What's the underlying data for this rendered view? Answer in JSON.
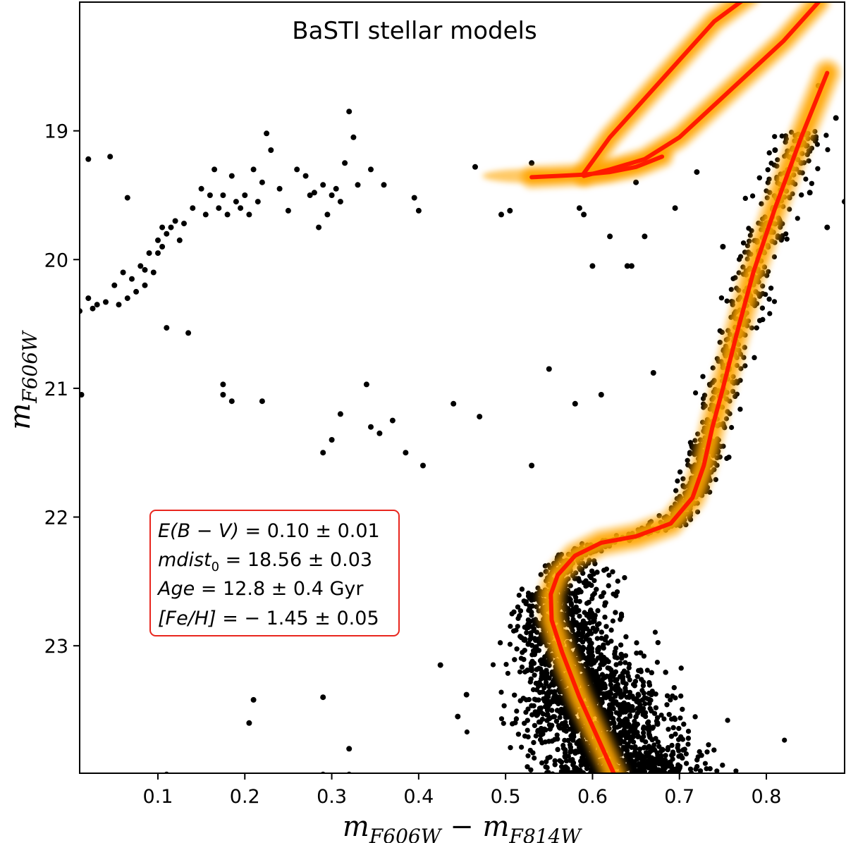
{
  "chart_data": {
    "type": "scatter",
    "title": "BaSTI stellar models",
    "xlabel": "m_F606W − m_F814W",
    "ylabel": "m_F606W",
    "xlabel_parts": {
      "base1": "m",
      "sub1": "F606W",
      "op": " − ",
      "base2": "m",
      "sub2": "F814W"
    },
    "ylabel_parts": {
      "base": "m",
      "sub": "F606W"
    },
    "xlim": [
      0.01,
      0.89
    ],
    "ylim": [
      23.99,
      18.0
    ],
    "y_inverted": true,
    "x_ticks": [
      0.1,
      0.2,
      0.3,
      0.4,
      0.5,
      0.6,
      0.7,
      0.8
    ],
    "x_tick_labels": [
      "0.1",
      "0.2",
      "0.3",
      "0.4",
      "0.5",
      "0.6",
      "0.7",
      "0.8"
    ],
    "y_ticks": [
      19,
      20,
      21,
      22,
      23
    ],
    "y_tick_labels": [
      "19",
      "20",
      "21",
      "22",
      "23"
    ],
    "grid": false,
    "annotation": {
      "lines": [
        {
          "label": "E(B − V)",
          "value": " = 0.10 ± 0.01"
        },
        {
          "label": "mdist",
          "sub": "0",
          "value": " = 18.56 ± 0.03"
        },
        {
          "label": "Age",
          "value": " = 12.8 ± 0.4 Gyr"
        },
        {
          "label": "[Fe/H]",
          "value": " = − 1.45 ± 0.05"
        }
      ],
      "border_color": "#e8261e"
    },
    "colors": {
      "points": "#000000",
      "best_fit": "#ff1a00",
      "uncertainty_band": "#ffa500"
    },
    "series": [
      {
        "kind": "best-fit isochrone (main sequence / subgiant / red giant branch)",
        "x": [
          0.625,
          0.605,
          0.585,
          0.565,
          0.553,
          0.552,
          0.56,
          0.58,
          0.61,
          0.65,
          0.69,
          0.715,
          0.728,
          0.738,
          0.75,
          0.765,
          0.785,
          0.81,
          0.84,
          0.87
        ],
        "y": [
          24.0,
          23.7,
          23.4,
          23.05,
          22.8,
          22.6,
          22.45,
          22.3,
          22.2,
          22.15,
          22.05,
          21.85,
          21.6,
          21.3,
          21.0,
          20.6,
          20.1,
          19.6,
          19.05,
          18.55
        ]
      },
      {
        "kind": "best-fit horizontal branch",
        "x": [
          0.53,
          0.56,
          0.59,
          0.62,
          0.65,
          0.68
        ],
        "y": [
          19.36,
          19.35,
          19.34,
          19.32,
          19.28,
          19.2
        ]
      },
      {
        "kind": "best-fit asymptotic giant branch",
        "x": [
          0.59,
          0.62,
          0.66,
          0.7,
          0.74,
          0.78,
          0.82,
          0.86
        ],
        "y": [
          19.35,
          19.3,
          19.22,
          19.05,
          18.8,
          18.55,
          18.3,
          18.0
        ]
      },
      {
        "kind": "best-fit upper branch",
        "x": [
          0.59,
          0.62,
          0.66,
          0.7,
          0.74,
          0.78
        ],
        "y": [
          19.33,
          19.05,
          18.75,
          18.45,
          18.15,
          17.95
        ]
      },
      {
        "kind": "observed horizontal-branch stars",
        "x": [
          0.01,
          0.02,
          0.025,
          0.03,
          0.04,
          0.05,
          0.055,
          0.06,
          0.065,
          0.07,
          0.075,
          0.08,
          0.085,
          0.09,
          0.095,
          0.1,
          0.105,
          0.11,
          0.115,
          0.12,
          0.125,
          0.13,
          0.14,
          0.15,
          0.155,
          0.16,
          0.165,
          0.17,
          0.175,
          0.18,
          0.185,
          0.19,
          0.195,
          0.2,
          0.205,
          0.21,
          0.215,
          0.22,
          0.225,
          0.23,
          0.24,
          0.25,
          0.26,
          0.27,
          0.275,
          0.28,
          0.285,
          0.29,
          0.295,
          0.3,
          0.305,
          0.31,
          0.315,
          0.32,
          0.325,
          0.33,
          0.345,
          0.36,
          0.02,
          0.045,
          0.1,
          0.065,
          0.085,
          0.11,
          0.175,
          0.105,
          0.135
        ],
        "y": [
          20.4,
          20.3,
          20.38,
          20.35,
          20.33,
          20.2,
          20.35,
          20.1,
          20.3,
          20.15,
          20.25,
          20.05,
          20.2,
          19.95,
          20.1,
          19.85,
          19.9,
          19.8,
          19.75,
          19.7,
          19.85,
          19.72,
          19.6,
          19.45,
          19.65,
          19.5,
          19.3,
          19.6,
          19.5,
          19.65,
          19.35,
          19.55,
          19.6,
          19.5,
          19.65,
          19.3,
          19.55,
          19.4,
          19.02,
          19.15,
          19.45,
          19.62,
          19.3,
          19.35,
          19.5,
          19.48,
          19.75,
          19.42,
          19.65,
          19.5,
          19.45,
          19.55,
          19.25,
          18.85,
          19.05,
          19.42,
          19.3,
          19.42,
          19.22,
          19.2,
          19.95,
          19.52,
          20.08,
          20.53,
          20.97,
          19.75,
          20.57
        ],
        "note": "approximate positions read from the figure"
      },
      {
        "kind": "observed field / sparse stars",
        "x": [
          0.012,
          0.175,
          0.185,
          0.22,
          0.29,
          0.3,
          0.31,
          0.34,
          0.345,
          0.355,
          0.37,
          0.385,
          0.405,
          0.44,
          0.47,
          0.395,
          0.4,
          0.425,
          0.445,
          0.455,
          0.29,
          0.205,
          0.21,
          0.32,
          0.11,
          0.29,
          0.32,
          0.465,
          0.505,
          0.495,
          0.53,
          0.585,
          0.59,
          0.62,
          0.645,
          0.66,
          0.695,
          0.55,
          0.58,
          0.61,
          0.64,
          0.67,
          0.53,
          0.65,
          0.6,
          0.72,
          0.75,
          0.81,
          0.85,
          0.87,
          0.83,
          0.86,
          0.88,
          0.89,
          0.84
        ],
        "y": [
          21.05,
          21.05,
          21.1,
          21.1,
          21.5,
          21.4,
          21.2,
          20.97,
          21.3,
          21.35,
          21.25,
          21.5,
          21.6,
          21.12,
          21.22,
          19.52,
          19.62,
          23.15,
          23.55,
          23.38,
          23.4,
          23.6,
          23.42,
          23.8,
          24.0,
          24.0,
          24.0,
          19.28,
          19.62,
          19.65,
          19.25,
          19.6,
          19.65,
          19.82,
          20.05,
          19.82,
          19.6,
          20.85,
          21.12,
          21.05,
          20.05,
          20.88,
          21.6,
          19.4,
          20.05,
          19.32,
          19.9,
          19.15,
          19.48,
          19.75,
          19.4,
          18.65,
          18.9,
          19.55,
          19.25
        ],
        "note": "approximate positions read from the figure"
      }
    ]
  }
}
